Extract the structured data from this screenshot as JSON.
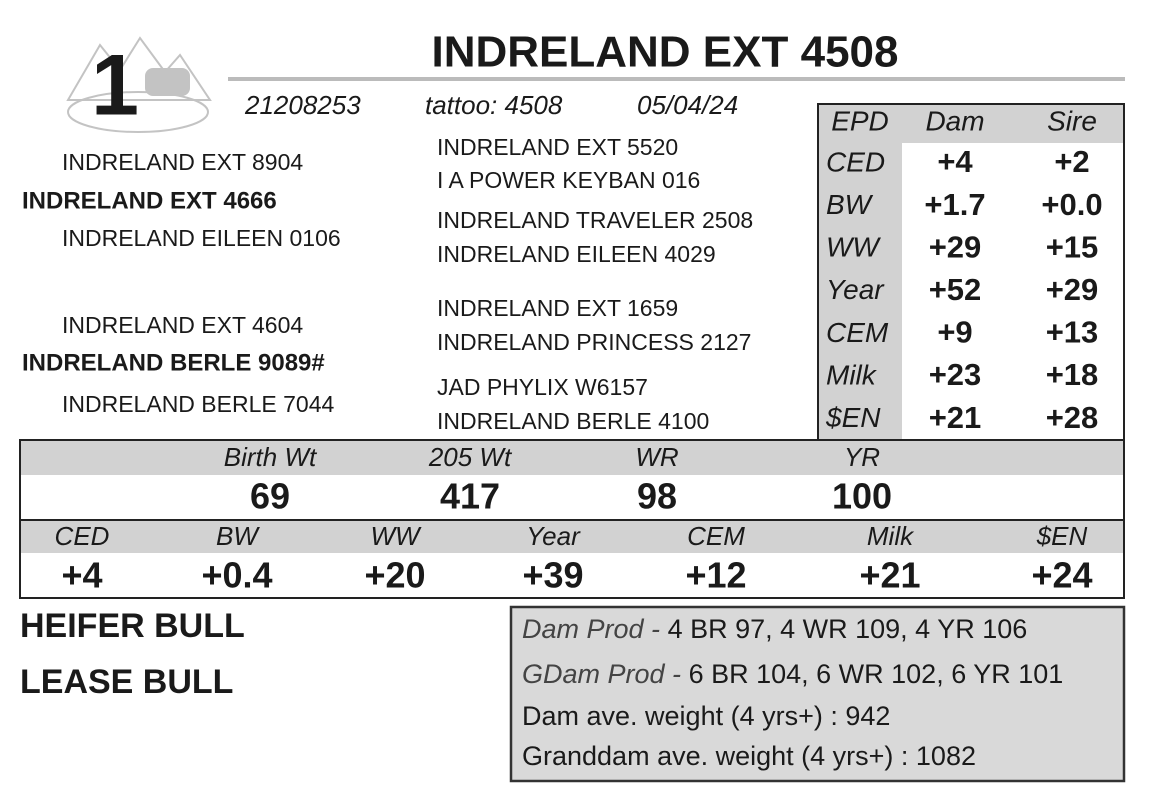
{
  "lot": "1",
  "title": "INDRELAND EXT 4508",
  "registration": "21208253",
  "tattoo": "tattoo: 4508",
  "birth_date": "05/04/24",
  "pedigree": {
    "sire_sire": "INDRELAND EXT 8904",
    "sire": "INDRELAND EXT 4666",
    "sire_dam": "INDRELAND EILEEN 0106",
    "dam_sire": "INDRELAND EXT 4604",
    "dam": "INDRELAND BERLE 9089#",
    "dam_dam": "INDRELAND BERLE 7044",
    "great_grandparents": [
      "INDRELAND EXT 5520",
      "I A POWER KEYBAN 016",
      "INDRELAND TRAVELER 2508",
      "INDRELAND EILEEN 4029",
      "INDRELAND EXT 1659",
      "INDRELAND PRINCESS 2127",
      "JAD PHYLIX W6157",
      "INDRELAND BERLE 4100"
    ]
  },
  "parent_epds": {
    "headers": [
      "EPD",
      "Dam",
      "Sire"
    ],
    "rows": [
      [
        "CED",
        "+4",
        "+2"
      ],
      [
        "BW",
        "+1.7",
        "+0.0"
      ],
      [
        "WW",
        "+29",
        "+15"
      ],
      [
        "Year",
        "+52",
        "+29"
      ],
      [
        "CEM",
        "+9",
        "+13"
      ],
      [
        "Milk",
        "+23",
        "+18"
      ],
      [
        "$EN",
        "+21",
        "+28"
      ]
    ]
  },
  "performance": {
    "labels": [
      "Birth Wt",
      "205 Wt",
      "WR",
      "YR"
    ],
    "values": [
      "69",
      "417",
      "98",
      "100"
    ]
  },
  "epds": {
    "labels": [
      "CED",
      "BW",
      "WW",
      "Year",
      "CEM",
      "Milk",
      "$EN"
    ],
    "values": [
      "+4",
      "+0.4",
      "+20",
      "+39",
      "+12",
      "+21",
      "+24"
    ]
  },
  "notes": [
    "HEIFER BULL",
    "LEASE BULL"
  ],
  "production": [
    {
      "label": "Dam Prod -",
      "text": "4 BR 97, 4 WR 109, 4 YR 106"
    },
    {
      "label": "GDam Prod -",
      "text": "6 BR 104, 6 WR 102, 6 YR 101"
    },
    {
      "text": "Dam ave. weight (4 yrs+) : 942"
    },
    {
      "text": "Granddam ave. weight (4 yrs+) : 1082"
    }
  ]
}
